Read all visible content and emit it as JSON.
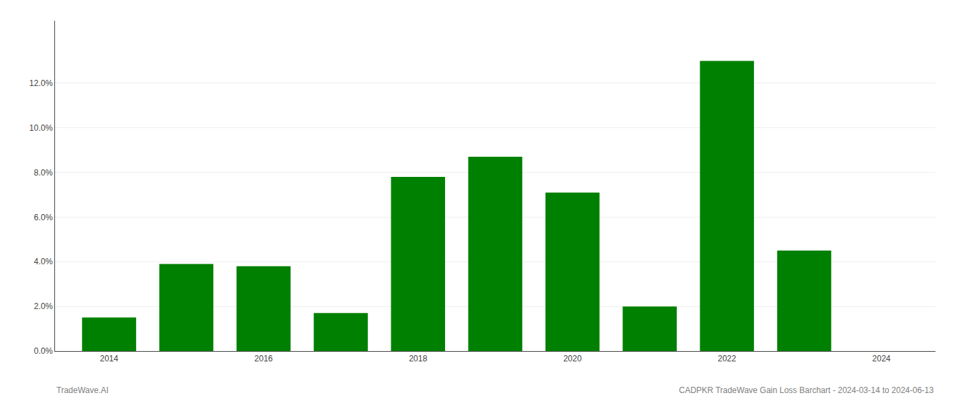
{
  "chart_data": {
    "type": "bar",
    "x": [
      2014,
      2015,
      2016,
      2017,
      2018,
      2019,
      2020,
      2021,
      2022,
      2023,
      2024
    ],
    "values": [
      0.015,
      0.039,
      0.038,
      0.017,
      0.078,
      0.087,
      0.071,
      0.02,
      0.13,
      0.045,
      0.0
    ],
    "color": "#008000",
    "xlim": [
      2013.3,
      2024.7
    ],
    "xticks": [
      2014,
      2016,
      2018,
      2020,
      2022,
      2024
    ],
    "ylim": [
      0,
      0.148
    ],
    "yticks": [
      {
        "value": 0.0,
        "label": "0.0%"
      },
      {
        "value": 0.02,
        "label": "2.0%"
      },
      {
        "value": 0.04,
        "label": "4.0%"
      },
      {
        "value": 0.06,
        "label": "6.0%"
      },
      {
        "value": 0.08,
        "label": "8.0%"
      },
      {
        "value": 0.1,
        "label": "10.0%"
      },
      {
        "value": 0.12,
        "label": "12.0%"
      }
    ],
    "grid": true,
    "annotations": [
      "TradeWave.AI",
      "CADPKR TradeWave Gain Loss Barchart - 2024-03-14 to 2024-06-13"
    ]
  }
}
